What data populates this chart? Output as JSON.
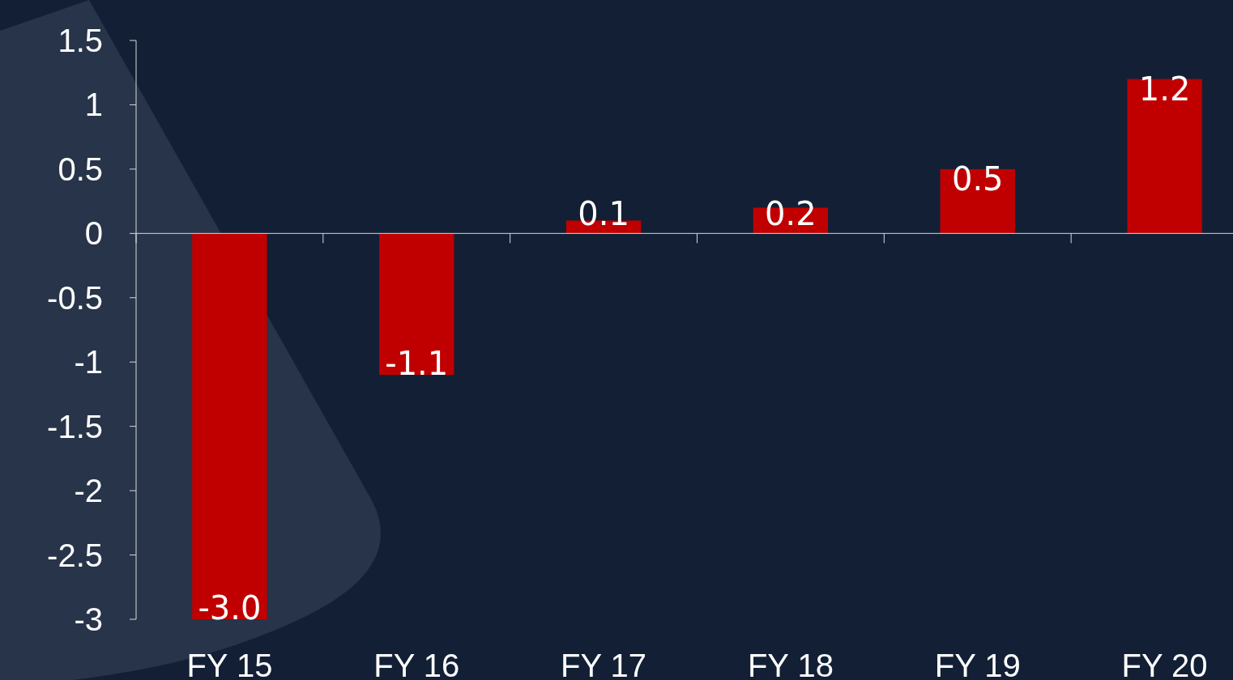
{
  "chart_data": {
    "type": "bar",
    "categories": [
      "FY 15",
      "FY 16",
      "FY 17",
      "FY 18",
      "FY 19",
      "FY 20"
    ],
    "values": [
      -3.0,
      -1.1,
      0.1,
      0.2,
      0.5,
      1.2
    ],
    "value_labels": [
      "-3.0",
      "-1.1",
      "0.1",
      "0.2",
      "0.5",
      "1.2"
    ],
    "color": "#c00000",
    "ylim": [
      -3,
      1.5
    ],
    "yticks": [
      -3,
      -2.5,
      -2,
      -1.5,
      -1,
      -0.5,
      0,
      0.5,
      1,
      1.5
    ]
  }
}
